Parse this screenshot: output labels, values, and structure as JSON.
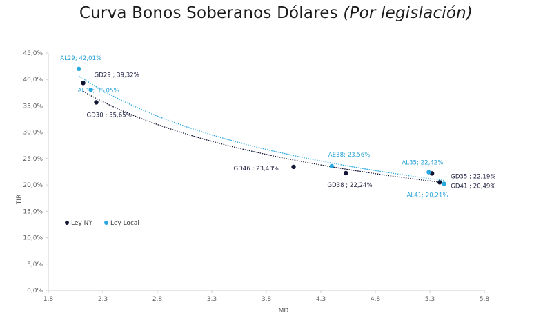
{
  "title": {
    "main": "Curva Bonos Soberanos Dólares",
    "sub": "(Por legislación)"
  },
  "chart_data": {
    "type": "scatter",
    "title": "Curva Bonos Soberanos Dólares (Por legislación)",
    "xlabel": "MD",
    "ylabel": "TIR",
    "xlim": [
      1.8,
      5.8
    ],
    "ylim": [
      0,
      45
    ],
    "xticks": [
      "1,8",
      "2,3",
      "2,8",
      "3,3",
      "3,8",
      "4,3",
      "4,8",
      "5,3",
      "5,8"
    ],
    "yticks": [
      "0,0%",
      "5,0%",
      "10,0%",
      "15,0%",
      "20,0%",
      "25,0%",
      "30,0%",
      "35,0%",
      "40,0%",
      "45,0%"
    ],
    "grid": false,
    "legend_position": "bottom-left",
    "series": [
      {
        "name": "Ley NY",
        "color": "#111433",
        "trendline": true,
        "points": [
          {
            "label": "GD29 ; 39,32%",
            "x": 2.12,
            "y": 39.32
          },
          {
            "label": "GD30 ; 35,65%",
            "x": 2.24,
            "y": 35.65
          },
          {
            "label": "GD46 ; 23,43%",
            "x": 4.05,
            "y": 23.43
          },
          {
            "label": "GD38 ; 22,24%",
            "x": 4.53,
            "y": 22.24
          },
          {
            "label": "GD35 ; 22,19%",
            "x": 5.32,
            "y": 22.19
          },
          {
            "label": "GD41 ; 20,49%",
            "x": 5.39,
            "y": 20.49
          }
        ]
      },
      {
        "name": "Ley Local",
        "color": "#29a8e0",
        "trendline": true,
        "points": [
          {
            "label": "AL29; 42,01%",
            "x": 2.08,
            "y": 42.01
          },
          {
            "label": "AL30; 38,05%",
            "x": 2.19,
            "y": 38.05
          },
          {
            "label": "AE38; 23,56%",
            "x": 4.4,
            "y": 23.56
          },
          {
            "label": "AL35; 22,42%",
            "x": 5.29,
            "y": 22.42
          },
          {
            "label": "AL41; 20,21%",
            "x": 5.43,
            "y": 20.21
          }
        ]
      }
    ]
  }
}
